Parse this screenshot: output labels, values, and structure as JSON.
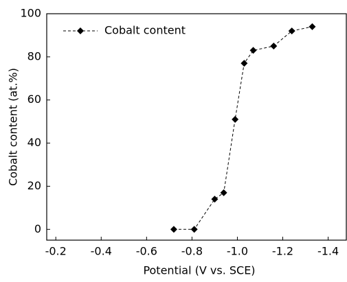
{
  "chart_data": {
    "type": "line",
    "xlabel": "Potential (V vs. SCE)",
    "ylabel": "Cobalt content (at.%)",
    "x": [
      -0.72,
      -0.81,
      -0.9,
      -0.94,
      -0.99,
      -1.03,
      -1.07,
      -1.16,
      -1.24,
      -1.33
    ],
    "series": [
      {
        "name": "Cobalt content",
        "color": "#000000",
        "values": [
          0,
          0,
          14,
          17,
          51,
          77,
          83,
          85,
          92,
          94
        ]
      }
    ],
    "xlim": [
      -0.16,
      -1.48
    ],
    "ylim": [
      -5,
      100
    ],
    "xticks": [
      -0.2,
      -0.4,
      -0.6,
      -0.8,
      {
        "value": -1,
        "label": "-1.0"
      },
      -1.2,
      -1.4
    ],
    "yticks": [
      0,
      20,
      40,
      60,
      80,
      100
    ],
    "legend": "top-left"
  }
}
